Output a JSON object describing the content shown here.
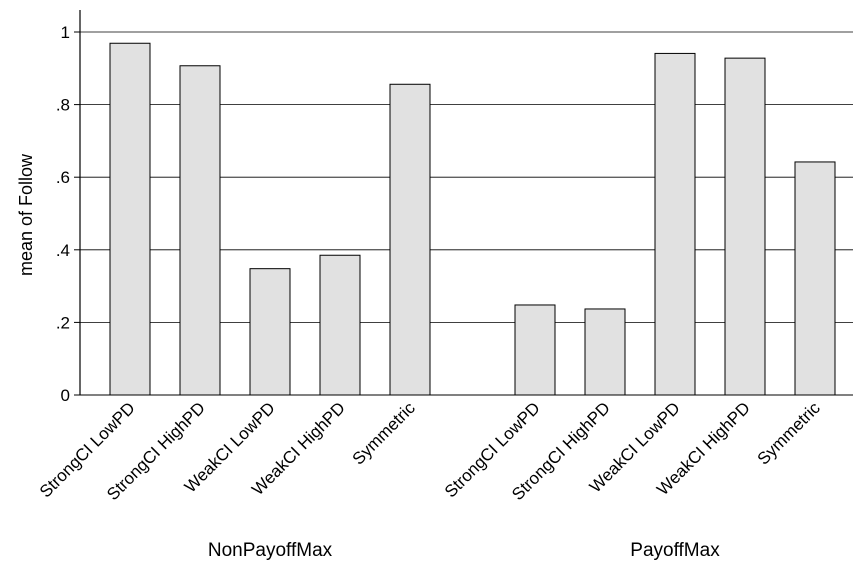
{
  "chart_data": {
    "type": "bar",
    "ylabel": "mean of Follow",
    "xlabel": "",
    "title": "",
    "ylim": [
      0,
      1.05
    ],
    "yticks": [
      {
        "value": 0,
        "label": "0"
      },
      {
        "value": 0.2,
        "label": ".2"
      },
      {
        "value": 0.4,
        "label": ".4"
      },
      {
        "value": 0.6,
        "label": ".6"
      },
      {
        "value": 0.8,
        "label": ".8"
      },
      {
        "value": 1,
        "label": "1"
      }
    ],
    "grid": true,
    "bar_color": "#e1e1e1",
    "groups": [
      {
        "name": "NonPayoffMax",
        "categories": [
          "StrongCI LowPD",
          "StrongCI HighPD",
          "WeakCI LowPD",
          "WeakCI HighPD",
          "Symmetric"
        ],
        "values": [
          0.969,
          0.907,
          0.348,
          0.385,
          0.856
        ]
      },
      {
        "name": "PayoffMax",
        "categories": [
          "StrongCI LowPD",
          "StrongCI HighPD",
          "WeakCI LowPD",
          "WeakCI HighPD",
          "Symmetric"
        ],
        "values": [
          0.248,
          0.237,
          0.941,
          0.928,
          0.642
        ]
      }
    ]
  }
}
